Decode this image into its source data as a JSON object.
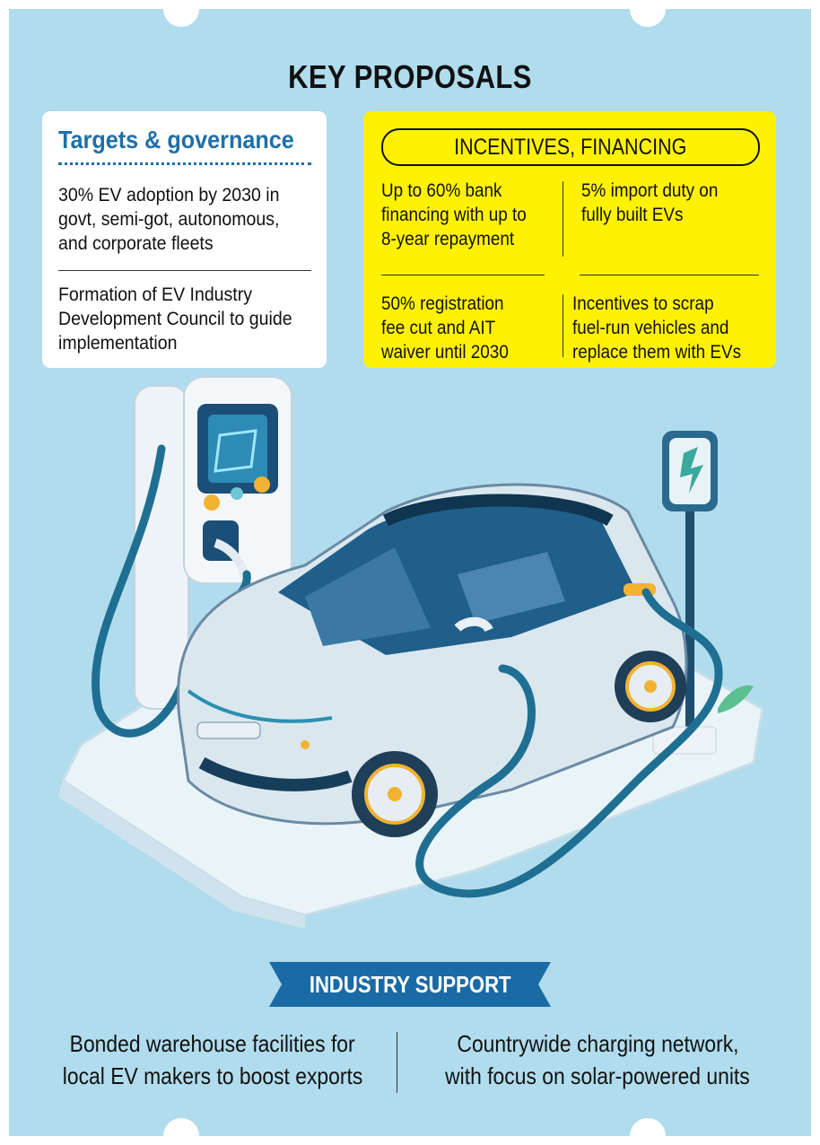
{
  "title": "KEY PROPOSALS",
  "targets": {
    "heading": "Targets & governance",
    "item1": [
      "30% EV adoption by 2030 in",
      "govt, semi-got, autonomous,",
      "and corporate fleets"
    ],
    "item2": [
      "Formation of EV Industry",
      "Development Council to guide",
      "implementation"
    ]
  },
  "incentives": {
    "heading": "INCENTIVES, FINANCING",
    "cells": [
      [
        "Up to 60% bank",
        "financing with up to",
        "8-year repayment"
      ],
      [
        "5% import duty on",
        "fully built EVs"
      ],
      [
        "50% registration",
        "fee cut and AIT",
        "waiver until 2030"
      ],
      [
        "Incentives to scrap",
        "fuel-run vehicles and",
        "replace them with EVs"
      ]
    ]
  },
  "industry": {
    "heading": "INDUSTRY SUPPORT",
    "left": [
      "Bonded warehouse facilities for",
      "local EV makers to boost exports"
    ],
    "right": [
      "Countrywide charging network,",
      "with focus on solar-powered units"
    ]
  },
  "colors": {
    "background": "#b0dced",
    "accent_blue": "#1f6fa8",
    "highlight_yellow": "#fff200",
    "banner_blue": "#1a6aa5"
  }
}
